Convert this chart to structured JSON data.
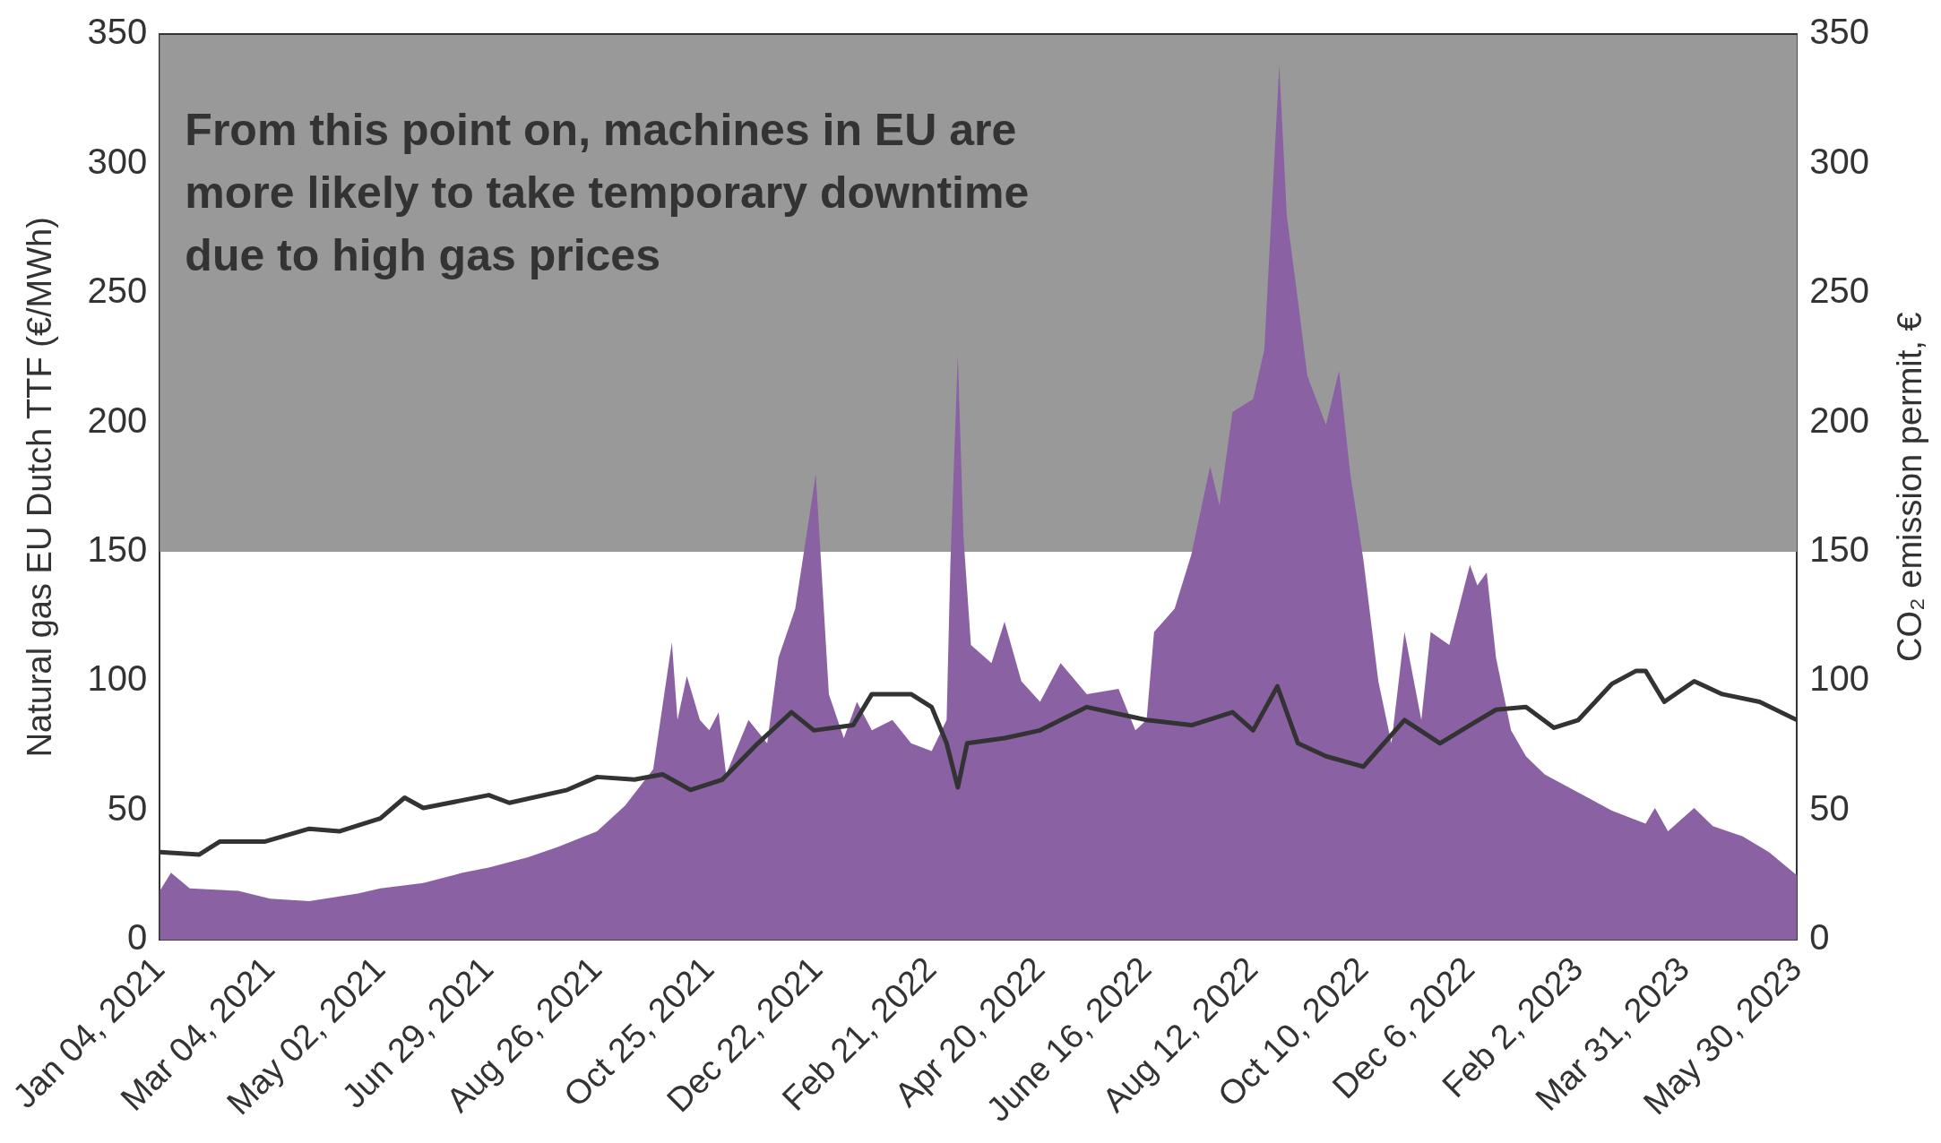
{
  "chart_data": {
    "type": "area",
    "ylabel": "Natural gas EU Dutch TTF (€/MWh)",
    "y2label": "CO₂ emission permit, €",
    "ylim": [
      0,
      350
    ],
    "yticks": [
      0,
      50,
      100,
      150,
      200,
      250,
      300,
      350
    ],
    "y2lim": [
      0,
      350
    ],
    "y2ticks": [
      0,
      50,
      100,
      150,
      200,
      250,
      300,
      350
    ],
    "xlim": [
      "2021-01-04",
      "2023-05-30"
    ],
    "xticks": [
      {
        "value": "2021-01-04",
        "label": "Jan 04, 2021"
      },
      {
        "value": "2021-03-04",
        "label": "Mar 04, 2021"
      },
      {
        "value": "2021-05-02",
        "label": "May 02, 2021"
      },
      {
        "value": "2021-06-29",
        "label": "Jun 29, 2021"
      },
      {
        "value": "2021-08-26",
        "label": "Aug 26, 2021"
      },
      {
        "value": "2021-10-25",
        "label": "Oct 25, 2021"
      },
      {
        "value": "2021-12-22",
        "label": "Dec 22, 2021"
      },
      {
        "value": "2022-02-21",
        "label": "Feb 21, 2022"
      },
      {
        "value": "2022-04-20",
        "label": "Apr 20, 2022"
      },
      {
        "value": "2022-06-16",
        "label": "June 16, 2022"
      },
      {
        "value": "2022-08-12",
        "label": "Aug 12, 2022"
      },
      {
        "value": "2022-10-10",
        "label": "Oct 10, 2022"
      },
      {
        "value": "2022-12-06",
        "label": "Dec 6, 2022"
      },
      {
        "value": "2023-02-02",
        "label": "Feb 2, 2023"
      },
      {
        "value": "2023-03-31",
        "label": "Mar 31, 2023"
      },
      {
        "value": "2023-05-30",
        "label": "May 30, 2023"
      }
    ],
    "bands": [
      {
        "axis": "y",
        "from": 150,
        "to": 350,
        "color": "#999999",
        "label": "From this point on, machines in EU are more likely to take temporary downtime due to high gas prices"
      }
    ],
    "grid": false,
    "legend": false,
    "series": [
      {
        "color": "#8a62a3",
        "x": [
          "2021-01-04",
          "2021-01-10",
          "2021-01-20",
          "2021-02-15",
          "2021-03-04",
          "2021-03-25",
          "2021-04-20",
          "2021-05-02",
          "2021-05-25",
          "2021-06-15",
          "2021-06-29",
          "2021-07-20",
          "2021-08-05",
          "2021-08-26",
          "2021-09-10",
          "2021-09-25",
          "2021-10-05",
          "2021-10-08",
          "2021-10-13",
          "2021-10-20",
          "2021-10-25",
          "2021-10-30",
          "2021-11-03",
          "2021-11-15",
          "2021-11-25",
          "2021-12-01",
          "2021-12-10",
          "2021-12-21",
          "2021-12-28",
          "2022-01-05",
          "2022-01-12",
          "2022-01-20",
          "2022-01-31",
          "2022-02-10",
          "2022-02-21",
          "2022-03-01",
          "2022-03-03",
          "2022-03-07",
          "2022-03-10",
          "2022-03-14",
          "2022-03-25",
          "2022-04-01",
          "2022-04-10",
          "2022-04-20",
          "2022-05-01",
          "2022-05-15",
          "2022-06-01",
          "2022-06-10",
          "2022-06-16",
          "2022-06-20",
          "2022-07-01",
          "2022-07-10",
          "2022-07-20",
          "2022-07-25",
          "2022-08-01",
          "2022-08-12",
          "2022-08-18",
          "2022-08-26",
          "2022-08-30",
          "2022-09-05",
          "2022-09-10",
          "2022-09-20",
          "2022-09-27",
          "2022-10-03",
          "2022-10-10",
          "2022-10-18",
          "2022-10-25",
          "2022-11-01",
          "2022-11-10",
          "2022-11-15",
          "2022-11-25",
          "2022-12-06",
          "2022-12-10",
          "2022-12-15",
          "2022-12-20",
          "2022-12-28",
          "2023-01-05",
          "2023-01-15",
          "2023-02-02",
          "2023-02-20",
          "2023-03-10",
          "2023-03-15",
          "2023-03-22",
          "2023-04-05",
          "2023-04-15",
          "2023-05-01",
          "2023-05-15",
          "2023-05-30"
        ],
        "values": [
          19,
          26,
          20,
          19,
          16,
          15,
          18,
          20,
          22,
          26,
          28,
          32,
          36,
          42,
          52,
          66,
          115,
          85,
          102,
          85,
          81,
          88,
          64,
          85,
          76,
          109,
          128,
          180,
          95,
          78,
          92,
          81,
          85,
          76,
          73,
          85,
          145,
          226,
          156,
          114,
          107,
          123,
          100,
          92,
          107,
          95,
          97,
          81,
          85,
          119,
          128,
          149,
          183,
          168,
          204,
          209,
          228,
          338,
          280,
          247,
          218,
          199,
          220,
          180,
          147,
          100,
          76,
          119,
          85,
          119,
          114,
          145,
          137,
          142,
          109,
          81,
          71,
          64,
          57,
          50,
          45,
          51,
          42,
          51,
          44,
          40,
          34,
          25
        ]
      },
      {
        "type": "line",
        "axis": "y2",
        "color": "#333333",
        "x": [
          "2021-01-04",
          "2021-01-25",
          "2021-02-05",
          "2021-03-01",
          "2021-03-25",
          "2021-04-10",
          "2021-05-02",
          "2021-05-15",
          "2021-05-25",
          "2021-06-29",
          "2021-07-10",
          "2021-08-10",
          "2021-08-26",
          "2021-09-15",
          "2021-09-30",
          "2021-10-15",
          "2021-11-01",
          "2021-11-20",
          "2021-12-08",
          "2021-12-20",
          "2022-01-10",
          "2022-01-20",
          "2022-02-10",
          "2022-02-21",
          "2022-03-01",
          "2022-03-07",
          "2022-03-12",
          "2022-04-01",
          "2022-04-20",
          "2022-05-15",
          "2022-06-16",
          "2022-07-10",
          "2022-08-01",
          "2022-08-12",
          "2022-08-25",
          "2022-09-05",
          "2022-09-20",
          "2022-10-10",
          "2022-11-01",
          "2022-11-20",
          "2022-12-06",
          "2022-12-20",
          "2023-01-05",
          "2023-01-20",
          "2023-02-02",
          "2023-02-20",
          "2023-03-05",
          "2023-03-10",
          "2023-03-20",
          "2023-04-05",
          "2023-04-20",
          "2023-05-10",
          "2023-05-30"
        ],
        "values": [
          34,
          33,
          38,
          38,
          43,
          42,
          47,
          55,
          51,
          56,
          53,
          58,
          63,
          62,
          64,
          58,
          62,
          76,
          88,
          81,
          83,
          95,
          95,
          90,
          76,
          59,
          76,
          78,
          81,
          90,
          85,
          83,
          88,
          81,
          98,
          76,
          71,
          67,
          85,
          76,
          83,
          89,
          90,
          82,
          85,
          99,
          104,
          104,
          92,
          100,
          95,
          92,
          85
        ]
      }
    ]
  }
}
